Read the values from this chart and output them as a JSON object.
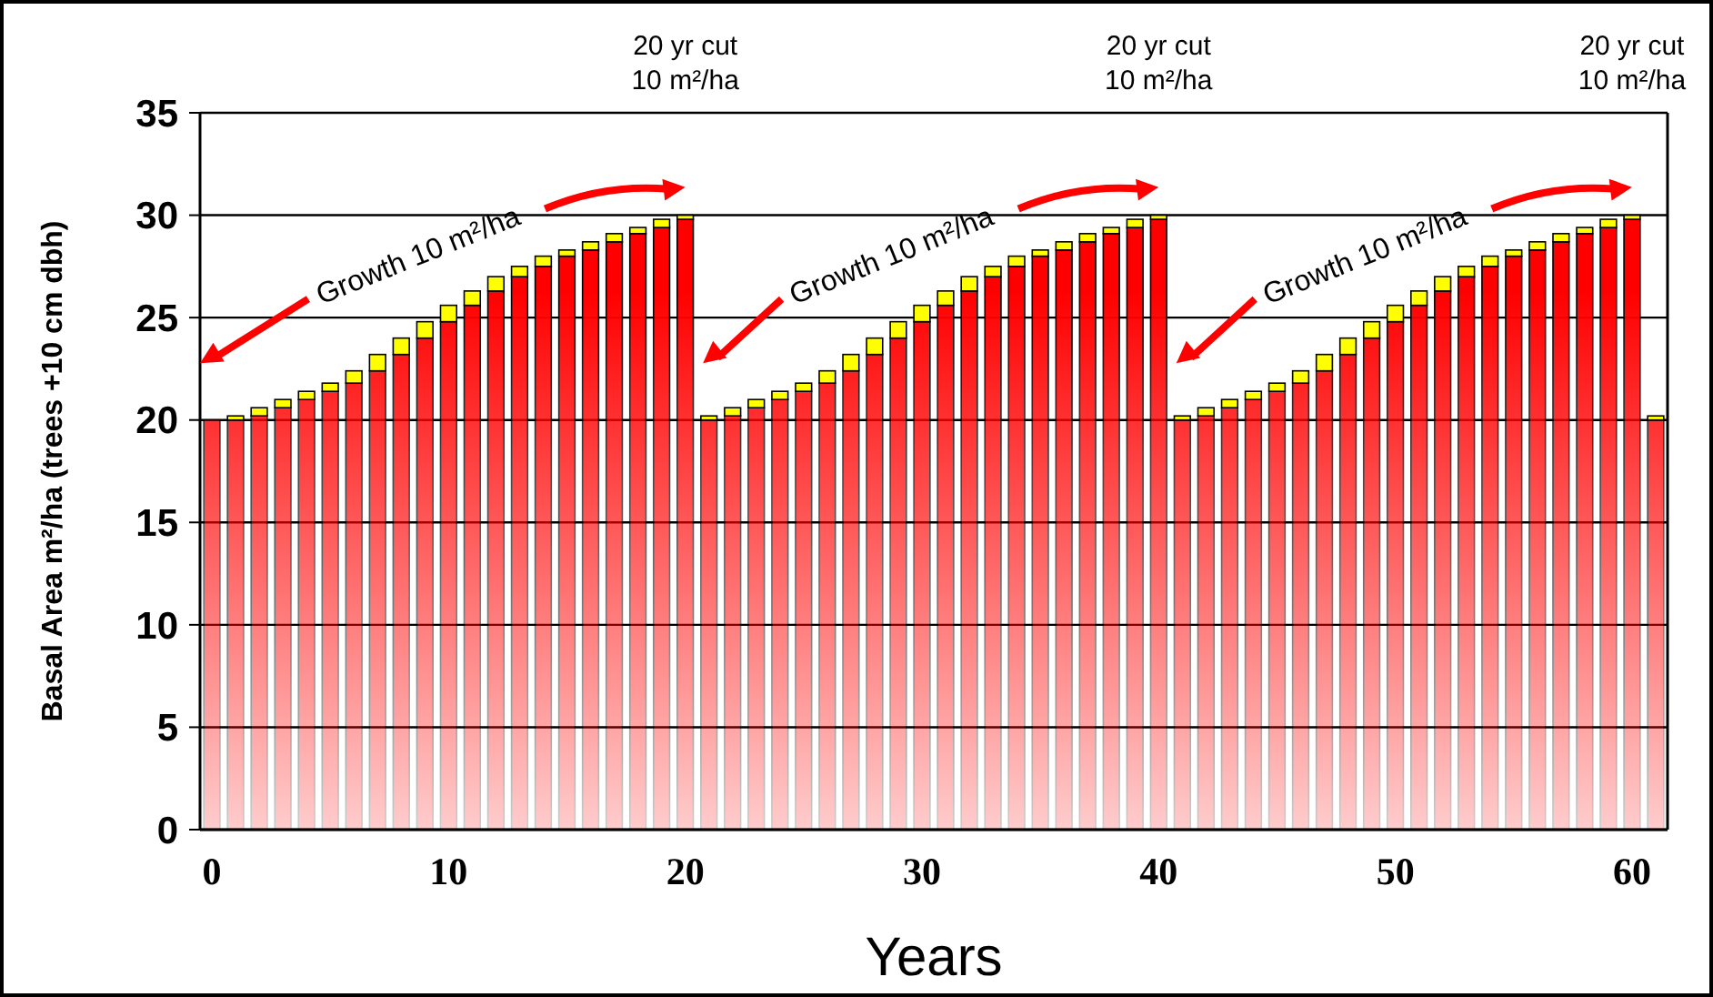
{
  "chart_data": {
    "type": "bar",
    "stacked": true,
    "xlabel": "Years",
    "ylabel": "Basal Area m²/ha (trees +10 cm dbh)",
    "x": [
      0,
      1,
      2,
      3,
      4,
      5,
      6,
      7,
      8,
      9,
      10,
      11,
      12,
      13,
      14,
      15,
      16,
      17,
      18,
      19,
      20,
      21,
      22,
      23,
      24,
      25,
      26,
      27,
      28,
      29,
      30,
      31,
      32,
      33,
      34,
      35,
      36,
      37,
      38,
      39,
      40,
      41,
      42,
      43,
      44,
      45,
      46,
      47,
      48,
      49,
      50,
      51,
      52,
      53,
      54,
      55,
      56,
      57,
      58,
      59,
      60,
      61
    ],
    "xlim": [
      -0.5,
      61.5
    ],
    "xticks": [
      0,
      10,
      20,
      30,
      40,
      50,
      60
    ],
    "ylim": [
      0,
      35
    ],
    "yticks": [
      0,
      5,
      10,
      15,
      20,
      25,
      30,
      35
    ],
    "grid": "y",
    "series": [
      {
        "color": "#ff0000",
        "values": [
          20,
          20,
          20.2,
          20.6,
          21.0,
          21.4,
          21.8,
          22.4,
          23.2,
          24.0,
          24.8,
          25.6,
          26.3,
          27.0,
          27.5,
          28.0,
          28.3,
          28.7,
          29.1,
          29.4,
          29.8,
          20,
          20.2,
          20.6,
          21.0,
          21.4,
          21.8,
          22.4,
          23.2,
          24.0,
          24.8,
          25.6,
          26.3,
          27.0,
          27.5,
          28.0,
          28.3,
          28.7,
          29.1,
          29.4,
          29.8,
          20,
          20.2,
          20.6,
          21.0,
          21.4,
          21.8,
          22.4,
          23.2,
          24.0,
          24.8,
          25.6,
          26.3,
          27.0,
          27.5,
          28.0,
          28.3,
          28.7,
          29.1,
          29.4,
          29.8,
          20
        ]
      },
      {
        "color": "#ffff00",
        "values": [
          0,
          0.2,
          0.4,
          0.4,
          0.4,
          0.4,
          0.6,
          0.8,
          0.8,
          0.8,
          0.8,
          0.7,
          0.7,
          0.5,
          0.5,
          0.3,
          0.4,
          0.4,
          0.3,
          0.4,
          0.2,
          0.2,
          0.4,
          0.4,
          0.4,
          0.4,
          0.6,
          0.8,
          0.8,
          0.8,
          0.8,
          0.7,
          0.7,
          0.5,
          0.5,
          0.3,
          0.4,
          0.4,
          0.3,
          0.4,
          0.2,
          0.2,
          0.4,
          0.4,
          0.4,
          0.4,
          0.6,
          0.8,
          0.8,
          0.8,
          0.8,
          0.7,
          0.7,
          0.5,
          0.5,
          0.3,
          0.4,
          0.4,
          0.3,
          0.4,
          0.2,
          0.2
        ]
      }
    ],
    "annotations": [
      "20 yr cut\n10 m²/ha",
      "20 yr cut\n10 m²/ha",
      "20 yr cut\n10 m²/ha",
      "Growth 10 m²/ha",
      "Growth 10 m²/ha",
      "Growth 10 m²/ha"
    ]
  }
}
